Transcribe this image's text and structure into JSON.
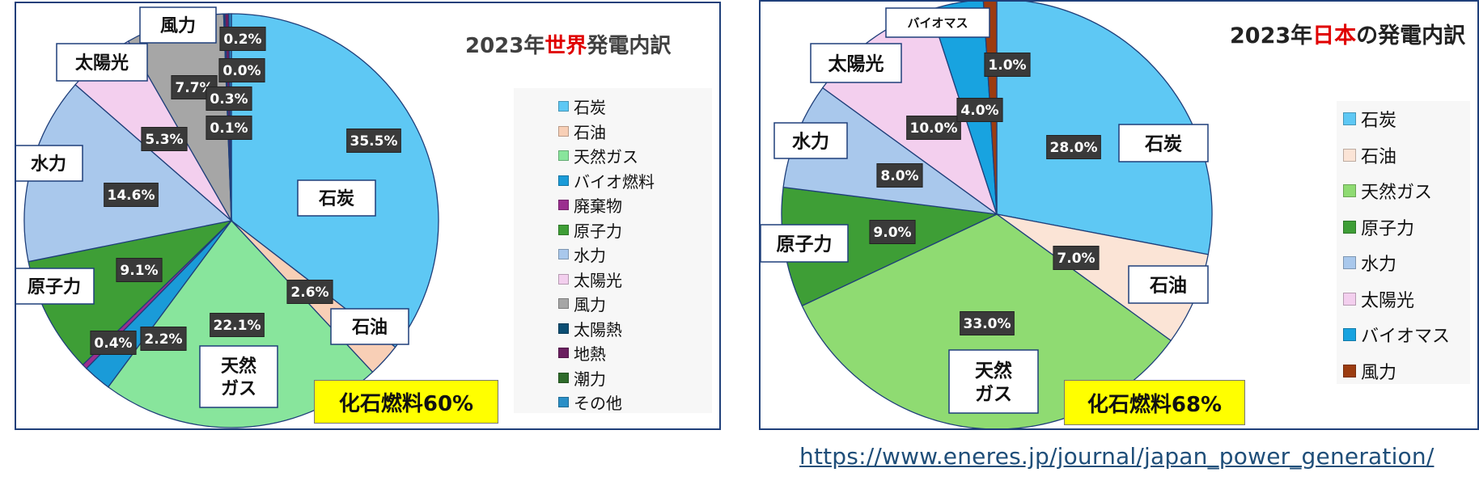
{
  "source_url": "https://www.eneres.jp/journal/japan_power_generation/",
  "chart_data": [
    {
      "type": "pie",
      "title_prefix": "2023年",
      "title_highlight": "世界",
      "title_suffix": "発電内訳",
      "fossil_label": "化石燃料60%",
      "slices": [
        {
          "name": "石炭",
          "value": 35.5,
          "pct_label": "35.5%",
          "color": "#5ec8f4",
          "callout": "石炭"
        },
        {
          "name": "石油",
          "value": 2.6,
          "pct_label": "2.6%",
          "color": "#f8cfb6",
          "callout": "石油"
        },
        {
          "name": "天然ガス",
          "value": 22.1,
          "pct_label": "22.1%",
          "color": "#88e59c",
          "callout": "天然\nガス"
        },
        {
          "name": "バイオ燃料",
          "value": 2.2,
          "pct_label": "2.2%",
          "color": "#1a9bd8",
          "callout": ""
        },
        {
          "name": "廃棄物",
          "value": 0.4,
          "pct_label": "0.4%",
          "color": "#9b2f8f",
          "callout": ""
        },
        {
          "name": "原子力",
          "value": 9.1,
          "pct_label": "9.1%",
          "color": "#3e9e36",
          "callout": "原子力"
        },
        {
          "name": "水力",
          "value": 14.6,
          "pct_label": "14.6%",
          "color": "#a9c8ec",
          "callout": "水力"
        },
        {
          "name": "太陽光",
          "value": 5.3,
          "pct_label": "5.3%",
          "color": "#f3cfee",
          "callout": "太陽光"
        },
        {
          "name": "風力",
          "value": 7.7,
          "pct_label": "7.7%",
          "color": "#a6a6a6",
          "callout": "風力"
        },
        {
          "name": "太陽熱",
          "value": 0.1,
          "pct_label": "0.1%",
          "color": "#0b4e73",
          "callout": ""
        },
        {
          "name": "地熱",
          "value": 0.3,
          "pct_label": "0.3%",
          "color": "#6b1f60",
          "callout": ""
        },
        {
          "name": "潮力",
          "value": 0.0,
          "pct_label": "0.0%",
          "color": "#2e6b2a",
          "callout": ""
        },
        {
          "name": "その他",
          "value": 0.2,
          "pct_label": "0.2%",
          "color": "#2a8fc7",
          "callout": ""
        }
      ],
      "legend": [
        "石炭",
        "石油",
        "天然ガス",
        "バイオ燃料",
        "廃棄物",
        "原子力",
        "水力",
        "太陽光",
        "風力",
        "太陽熱",
        "地熱",
        "潮力",
        "その他"
      ]
    },
    {
      "type": "pie",
      "title_prefix": "2023年",
      "title_highlight": "日本",
      "title_suffix": "の発電内訳",
      "fossil_label": "化石燃料68%",
      "slices": [
        {
          "name": "石炭",
          "value": 28.0,
          "pct_label": "28.0%",
          "color": "#5ec8f4",
          "callout": "石炭"
        },
        {
          "name": "石油",
          "value": 7.0,
          "pct_label": "7.0%",
          "color": "#fbe4d6",
          "callout": "石油"
        },
        {
          "name": "天然ガス",
          "value": 33.0,
          "pct_label": "33.0%",
          "color": "#8fdb72",
          "callout": "天然\nガス"
        },
        {
          "name": "原子力",
          "value": 9.0,
          "pct_label": "9.0%",
          "color": "#3e9e36",
          "callout": "原子力"
        },
        {
          "name": "水力",
          "value": 8.0,
          "pct_label": "8.0%",
          "color": "#a9c8ec",
          "callout": "水力"
        },
        {
          "name": "太陽光",
          "value": 10.0,
          "pct_label": "10.0%",
          "color": "#f3cfee",
          "callout": "太陽光"
        },
        {
          "name": "バイオマス",
          "value": 4.0,
          "pct_label": "4.0%",
          "color": "#18a3e0",
          "callout": "バイオマス"
        },
        {
          "name": "風力",
          "value": 1.0,
          "pct_label": "1.0%",
          "color": "#9c3c10",
          "callout": ""
        }
      ],
      "legend": [
        "石炭",
        "石油",
        "天然ガス",
        "原子力",
        "水力",
        "太陽光",
        "バイオマス",
        "風力"
      ]
    }
  ]
}
